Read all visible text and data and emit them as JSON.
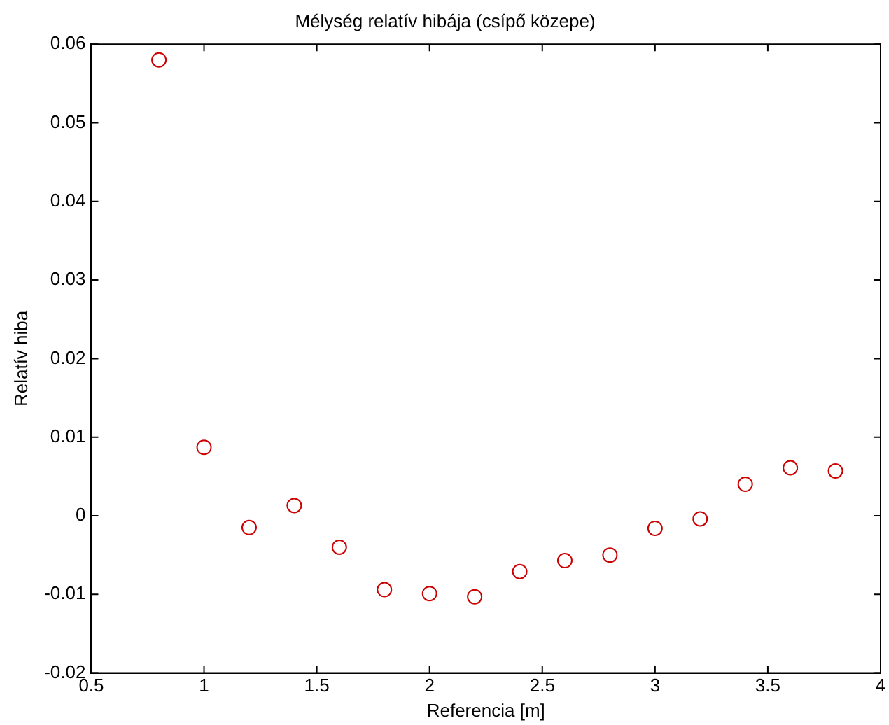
{
  "chart_data": {
    "type": "scatter",
    "title": "Mélység relatív hibája (csípő közepe)",
    "xlabel": "Referencia [m]",
    "ylabel": "Relatív hiba",
    "x": [
      0.8,
      1.0,
      1.2,
      1.4,
      1.6,
      1.8,
      2.0,
      2.2,
      2.4,
      2.6,
      2.8,
      3.0,
      3.2,
      3.4,
      3.6,
      3.8
    ],
    "series": [
      {
        "color": "#cc0000",
        "values": [
          0.058,
          0.0087,
          -0.0015,
          0.0013,
          -0.004,
          -0.0094,
          -0.0099,
          -0.0103,
          -0.0071,
          -0.0057,
          -0.005,
          -0.0016,
          -0.0004,
          0.004,
          0.0061,
          0.0057
        ]
      }
    ],
    "xlim": [
      0.5,
      4
    ],
    "xticks": [
      0.5,
      1,
      1.5,
      2,
      2.5,
      3,
      3.5,
      4
    ],
    "ylim": [
      -0.02,
      0.06
    ],
    "yticks": [
      -0.02,
      -0.01,
      0,
      0.01,
      0.02,
      0.03,
      0.04,
      0.05,
      0.06
    ],
    "grid": false,
    "legend": false,
    "marker": "circle"
  }
}
